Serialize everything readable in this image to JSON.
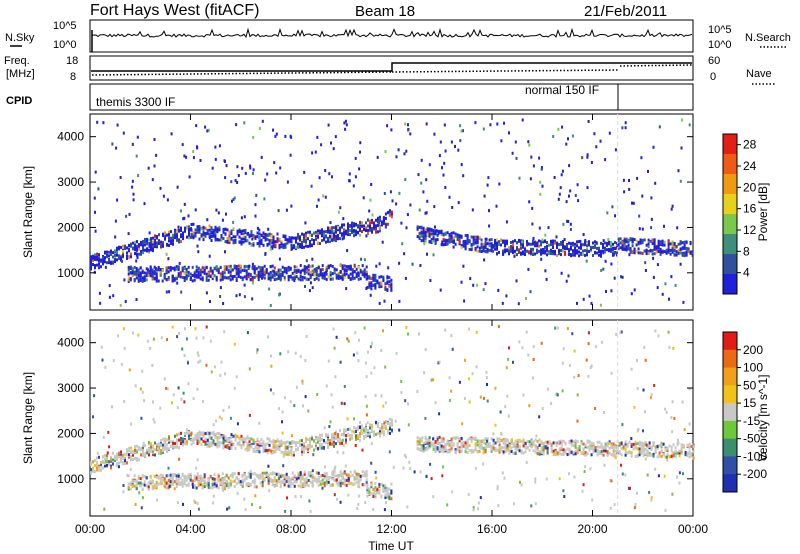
{
  "header": {
    "title": "Fort Hays West (fitACF)",
    "beam": "Beam 18",
    "date": "21/Feb/2011"
  },
  "status_panels": {
    "nsky_label": "N.Sky",
    "nsearch_label": "N.Search",
    "freq_label_1": "Freq.",
    "freq_label_2": "[MHz]",
    "nave_label": "Nave",
    "cpid_label": "CPID",
    "noise_ticks": [
      "10^5",
      "10^0"
    ],
    "freq_ticks": [
      "18",
      "8"
    ],
    "nave_ticks": [
      "60",
      "0"
    ],
    "cpid_modes": [
      {
        "name": "themis 3300 IF",
        "start_hour": 0,
        "end_hour": 21
      },
      {
        "name": "normal 150 IF",
        "start_hour": 21,
        "end_hour": 24
      }
    ],
    "frequency_step_hour": 12
  },
  "xaxis": {
    "label": "Time UT",
    "ticks": [
      "00:00",
      "04:00",
      "08:00",
      "12:00",
      "16:00",
      "20:00",
      "00:00"
    ],
    "range_hours": [
      0,
      24
    ]
  },
  "chart_data": [
    {
      "type": "heatmap",
      "name": "power",
      "ylabel": "Slant Range [km]",
      "yticks": [
        "1000",
        "2000",
        "3000",
        "4000"
      ],
      "ylim": [
        180,
        4500
      ],
      "colorbar_label": "Power [dB]",
      "colorbar_ticks": [
        "4",
        "8",
        "12",
        "16",
        "20",
        "24",
        "28"
      ],
      "color_range": [
        0,
        30
      ],
      "colors": [
        "#1f1fdc",
        "#2f4f9f",
        "#3c8f7a",
        "#7cc84c",
        "#e6d21c",
        "#f09a12",
        "#ef5a14",
        "#e31e14"
      ],
      "scatter_bands": [
        {
          "x_range": [
            0.0,
            4.0
          ],
          "range_start": 1250,
          "range_end": 1950
        },
        {
          "x_range": [
            4.0,
            8.0
          ],
          "range_start": 1950,
          "range_end": 1700
        },
        {
          "x_range": [
            8.0,
            11.5
          ],
          "range_start": 1700,
          "range_end": 2100
        },
        {
          "x_range": [
            11.5,
            12.0
          ],
          "range_start": 2100,
          "range_end": 2300
        },
        {
          "x_range": [
            1.5,
            11.0
          ],
          "range_start": 1000,
          "range_end": 1050
        },
        {
          "x_range": [
            11.0,
            12.0
          ],
          "range_start": 850,
          "range_end": 780
        },
        {
          "x_range": [
            13.0,
            16.0
          ],
          "range_start": 1900,
          "range_end": 1600
        },
        {
          "x_range": [
            16.0,
            21.0
          ],
          "range_start": 1600,
          "range_end": 1550
        },
        {
          "x_range": [
            21.0,
            24.0
          ],
          "range_start": 1650,
          "range_end": 1550
        }
      ]
    },
    {
      "type": "heatmap",
      "name": "velocity",
      "ylabel": "Slant Range [km]",
      "yticks": [
        "1000",
        "2000",
        "3000",
        "4000"
      ],
      "ylim": [
        180,
        4500
      ],
      "colorbar_label": "Velocity [m s^-1]",
      "colorbar_ticks": [
        "200",
        "100",
        "50",
        "15",
        "-15",
        "-50",
        "-100",
        "-200"
      ],
      "color_range": [
        -250,
        250
      ],
      "colors": [
        "#1e2fb4",
        "#2f4faa",
        "#3a8f6f",
        "#6ec83c",
        "#c8c8c4",
        "#f2c218",
        "#f0a01a",
        "#ec6a14",
        "#e21c14"
      ],
      "ground_scatter_color": "#c8c8c4",
      "scatter_bands": [
        {
          "x_range": [
            0.0,
            4.0
          ],
          "range_start": 1300,
          "range_end": 1950
        },
        {
          "x_range": [
            4.0,
            8.0
          ],
          "range_start": 1950,
          "range_end": 1700
        },
        {
          "x_range": [
            8.0,
            12.0
          ],
          "range_start": 1700,
          "range_end": 2200
        },
        {
          "x_range": [
            1.5,
            11.0
          ],
          "range_start": 950,
          "range_end": 1050
        },
        {
          "x_range": [
            11.0,
            12.0
          ],
          "range_start": 800,
          "range_end": 750
        },
        {
          "x_range": [
            13.0,
            24.0
          ],
          "range_start": 1800,
          "range_end": 1650
        }
      ]
    }
  ]
}
